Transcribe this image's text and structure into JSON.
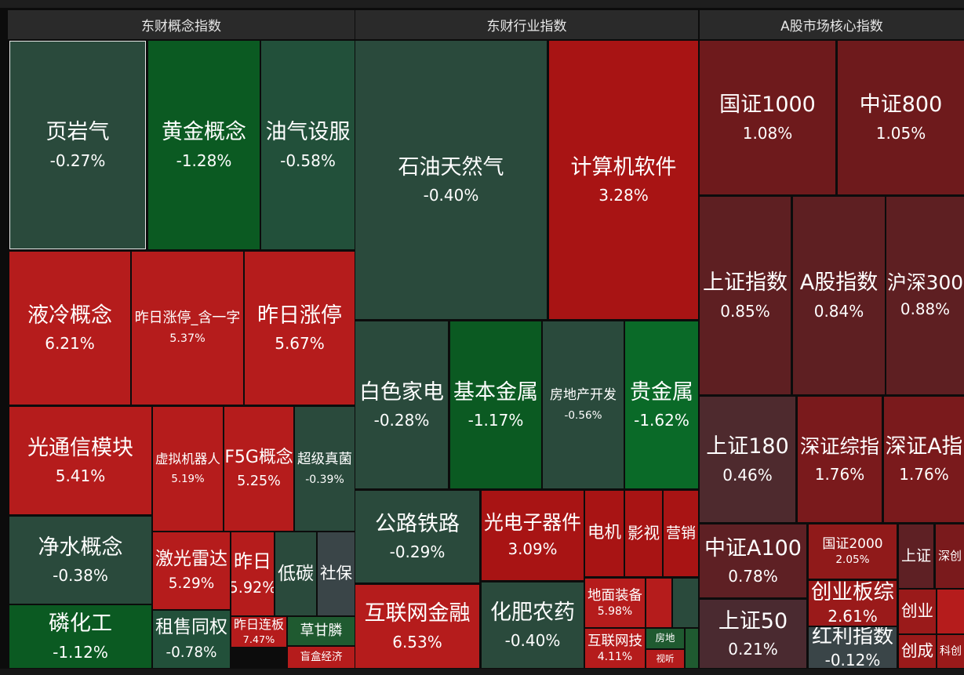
{
  "panels": [
    {
      "title": "东财概念指数",
      "tiles": [
        {
          "name": "页岩气",
          "change": "-0.27%",
          "color": "#2a4a3c"
        },
        {
          "name": "黄金概念",
          "change": "-1.28%",
          "color": "#0b5a22"
        },
        {
          "name": "油气设服",
          "change": "-0.58%",
          "color": "#22503a"
        },
        {
          "name": "液冷概念",
          "change": "6.21%",
          "color": "#b51c1c"
        },
        {
          "name": "昨日涨停_含一字",
          "change": "5.37%",
          "color": "#b51c1c"
        },
        {
          "name": "昨日涨停",
          "change": "5.67%",
          "color": "#b51c1c"
        },
        {
          "name": "光通信模块",
          "change": "5.41%",
          "color": "#b51c1c"
        },
        {
          "name": "虚拟机器人",
          "change": "5.19%",
          "color": "#b51c1c"
        },
        {
          "name": "F5G概念",
          "change": "5.25%",
          "color": "#b51c1c"
        },
        {
          "name": "超级真菌",
          "change": "-0.39%",
          "color": "#2a4a3c"
        },
        {
          "name": "净水概念",
          "change": "-0.38%",
          "color": "#2a4a3c"
        },
        {
          "name": "激光雷达",
          "change": "5.29%",
          "color": "#b51c1c"
        },
        {
          "name": "昨日",
          "change": "5.92%",
          "color": "#b51c1c"
        },
        {
          "name": "低碳",
          "color": "#2a4a3c"
        },
        {
          "name": "社保",
          "color": "#3a4548"
        },
        {
          "name": "磷化工",
          "change": "-1.12%",
          "color": "#0b5a22"
        },
        {
          "name": "租售同权",
          "change": "-0.78%",
          "color": "#22503a"
        },
        {
          "name": "昨日连板",
          "change": "7.47%",
          "color": "#b51c1c"
        },
        {
          "name": "草甘膦",
          "color": "#1f5a30"
        },
        {
          "name": "盲盒经济",
          "color": "#b51c1c"
        }
      ]
    },
    {
      "title": "东财行业指数",
      "tiles": [
        {
          "name": "石油天然气",
          "change": "-0.40%",
          "color": "#2a4a3c"
        },
        {
          "name": "计算机软件",
          "change": "3.28%",
          "color": "#a81414"
        },
        {
          "name": "白色家电",
          "change": "-0.28%",
          "color": "#2a4a3c"
        },
        {
          "name": "基本金属",
          "change": "-1.17%",
          "color": "#0b5a22"
        },
        {
          "name": "房地产开发",
          "change": "-0.56%",
          "color": "#2a4a3c"
        },
        {
          "name": "贵金属",
          "change": "-1.62%",
          "color": "#0a6a28"
        },
        {
          "name": "公路铁路",
          "change": "-0.29%",
          "color": "#2a4a3c"
        },
        {
          "name": "光电子器件",
          "change": "3.09%",
          "color": "#a81414"
        },
        {
          "name": "电机",
          "color": "#a81414"
        },
        {
          "name": "影视",
          "color": "#a81414"
        },
        {
          "name": "营销",
          "color": "#a81414"
        },
        {
          "name": "互联网金融",
          "change": "6.53%",
          "color": "#b51c1c"
        },
        {
          "name": "化肥农药",
          "change": "-0.40%",
          "color": "#2a4a3c"
        },
        {
          "name": "地面装备",
          "change": "5.98%",
          "color": "#b51c1c"
        },
        {
          "name": "互联网技",
          "change": "4.11%",
          "color": "#b51c1c"
        },
        {
          "name": "房地",
          "color": "#1f5a30"
        },
        {
          "name": "视听",
          "color": "#b51c1c"
        }
      ]
    },
    {
      "title": "A股市场核心指数",
      "tiles": [
        {
          "name": "国证1000",
          "change": "1.08%",
          "color": "#6e1a1c"
        },
        {
          "name": "中证800",
          "change": "1.05%",
          "color": "#6e1a1c"
        },
        {
          "name": "上证指数",
          "change": "0.85%",
          "color": "#5e1f22"
        },
        {
          "name": "A股指数",
          "change": "0.84%",
          "color": "#5e1f22"
        },
        {
          "name": "沪深300",
          "change": "0.88%",
          "color": "#5e1f22"
        },
        {
          "name": "上证180",
          "change": "0.46%",
          "color": "#4e2a2e"
        },
        {
          "name": "深证综指",
          "change": "1.76%",
          "color": "#7a1a1c"
        },
        {
          "name": "深证A指",
          "change": "1.76%",
          "color": "#7a1a1c"
        },
        {
          "name": "中证A100",
          "change": "0.78%",
          "color": "#5e2024"
        },
        {
          "name": "国证2000",
          "change": "2.05%",
          "color": "#901a1a"
        },
        {
          "name": "上证",
          "color": "#5e2024"
        },
        {
          "name": "深创",
          "color": "#7a1a1c"
        },
        {
          "name": "上证50",
          "change": "0.21%",
          "color": "#4a2a30"
        },
        {
          "name": "创业板综",
          "change": "2.61%",
          "color": "#9a1a1a"
        },
        {
          "name": "红利指数",
          "change": "-0.12%",
          "color": "#3a4548"
        },
        {
          "name": "创业",
          "color": "#9a1a1a"
        },
        {
          "name": "创成",
          "color": "#9a1a1a"
        },
        {
          "name": "科创",
          "color": "#9a1a1a"
        }
      ]
    }
  ]
}
